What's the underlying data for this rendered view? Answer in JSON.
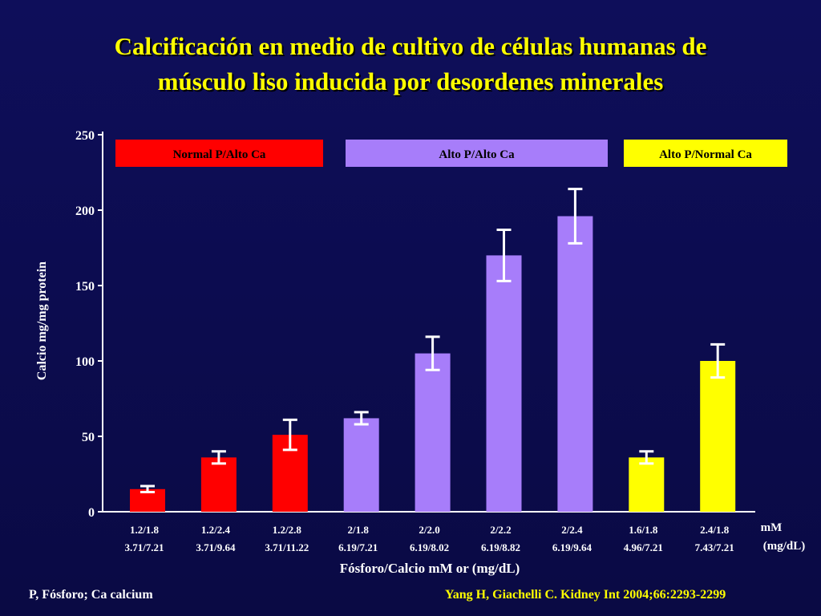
{
  "slide": {
    "title_line1": "Calcificación en medio de cultivo de células humanas de",
    "title_line2": "músculo liso inducida por desordenes minerales",
    "footer_left": "P, Fósforo; Ca  calcium",
    "footer_right": "Yang H, Giachelli C. Kidney Int 2004;66:2293-2299"
  },
  "chart_data": {
    "type": "bar",
    "ylabel": "Calcio mg/mg protein",
    "xlabel": "Fósforo/Calcio mM or (mg/dL)",
    "unit_label_line1": "mM",
    "unit_label_line2": "(mg/dL)",
    "ylim": [
      0,
      250
    ],
    "yticks": [
      0,
      50,
      100,
      150,
      200,
      250
    ],
    "categories": [
      {
        "line1": "1.2/1.8",
        "line2": "3.71/7.21"
      },
      {
        "line1": "1.2/2.4",
        "line2": "3.71/9.64"
      },
      {
        "line1": "1.2/2.8",
        "line2": "3.71/11.22"
      },
      {
        "line1": "2/1.8",
        "line2": "6.19/7.21"
      },
      {
        "line1": "2/2.0",
        "line2": "6.19/8.02"
      },
      {
        "line1": "2/2.2",
        "line2": "6.19/8.82"
      },
      {
        "line1": "2/2.4",
        "line2": "6.19/9.64"
      },
      {
        "line1": "1.6/1.8",
        "line2": "4.96/7.21"
      },
      {
        "line1": "2.4/1.8",
        "line2": "7.43/7.21"
      }
    ],
    "values": [
      15,
      36,
      51,
      62,
      105,
      170,
      196,
      36,
      100
    ],
    "errors": [
      2,
      4,
      10,
      4,
      11,
      17,
      18,
      4,
      11
    ],
    "groups": [
      {
        "label": "Normal P/Alto Ca",
        "color": "#ff0000",
        "text_color": "#000000",
        "indices": [
          0,
          1,
          2
        ]
      },
      {
        "label": "Alto P/Alto Ca",
        "color": "#a77dfa",
        "text_color": "#000000",
        "indices": [
          3,
          4,
          5,
          6
        ]
      },
      {
        "label": "Alto P/Normal Ca",
        "color": "#ffff00",
        "text_color": "#000000",
        "indices": [
          7,
          8
        ]
      }
    ],
    "grid": false
  }
}
